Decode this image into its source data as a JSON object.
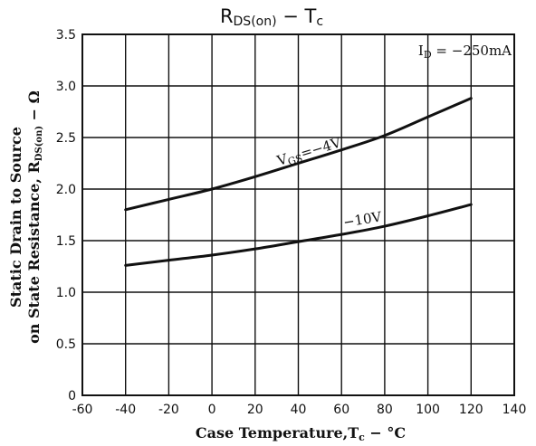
{
  "chart_data": {
    "type": "line",
    "title_main": "R",
    "title_sub": "DS(on)",
    "title_dash": " − ",
    "title_var": "T",
    "title_var_sub": "c",
    "condition": "I",
    "condition_sub": "D",
    "condition_value": " = −250mA",
    "xlabel_main": "Case Temperature,T",
    "xlabel_sub": "c",
    "xlabel_unit": " − °C",
    "ylabel_line1": "Static Drain to Source",
    "ylabel_line2_main": "on State Resistance, R",
    "ylabel_line2_sub": "DS(on)",
    "ylabel_line2_unit": " − Ω",
    "xlim": [
      -60,
      140
    ],
    "ylim": [
      0,
      3.5
    ],
    "xticks": [
      "-60",
      "-40",
      "-20",
      "0",
      "20",
      "40",
      "60",
      "80",
      "100",
      "120",
      "140"
    ],
    "yticks": [
      "0",
      "0.5",
      "1.0",
      "1.5",
      "2.0",
      "2.5",
      "3.0",
      "3.5"
    ],
    "grid": true,
    "series": [
      {
        "name_main": "V",
        "name_sub": "GS",
        "name_value": "=−4V",
        "x": [
          -40,
          -20,
          0,
          20,
          40,
          60,
          80,
          100,
          120
        ],
        "y": [
          1.8,
          1.9,
          2.0,
          2.12,
          2.25,
          2.38,
          2.52,
          2.7,
          2.88
        ]
      },
      {
        "name_value": "−10V",
        "x": [
          -40,
          -20,
          0,
          20,
          40,
          60,
          80,
          100,
          120
        ],
        "y": [
          1.26,
          1.31,
          1.36,
          1.42,
          1.49,
          1.56,
          1.64,
          1.74,
          1.85
        ]
      }
    ]
  }
}
